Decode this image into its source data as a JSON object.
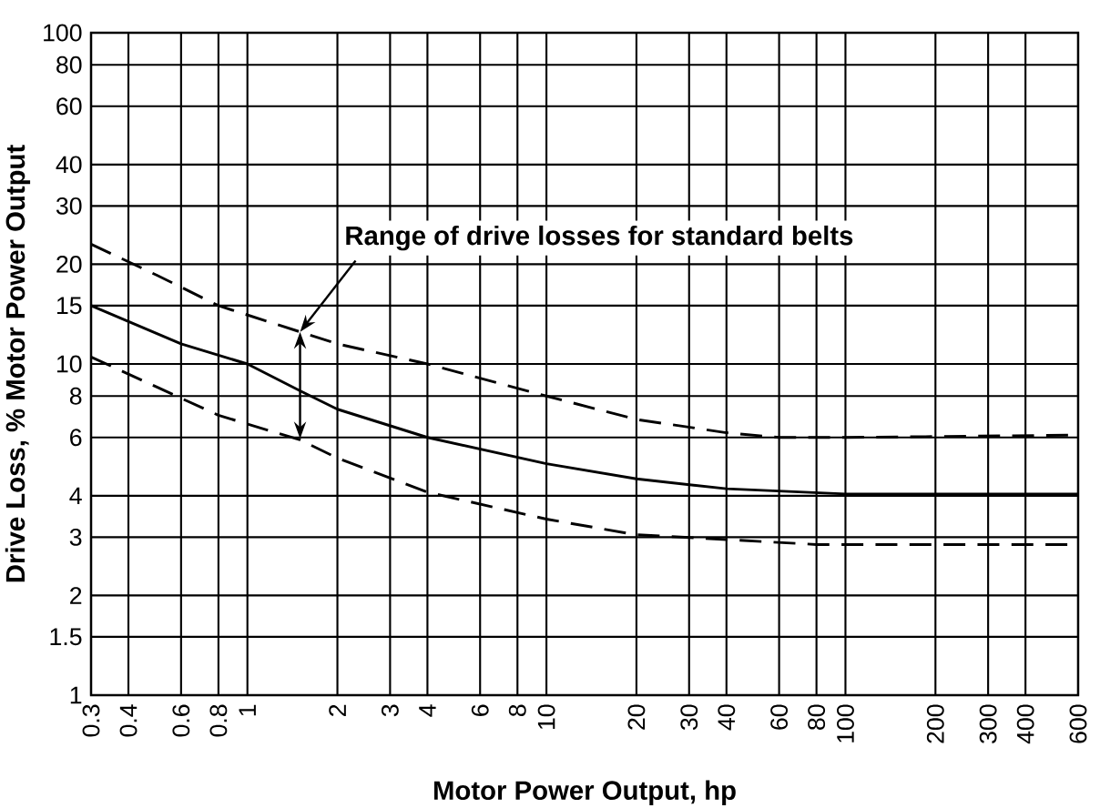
{
  "chart_data": {
    "type": "line",
    "xlabel": "Motor Power Output, hp",
    "ylabel": "Drive Loss, % Motor Power Output",
    "annotations": [
      {
        "text": "Range of drive losses for standard belts",
        "x": 1.5,
        "y": 12.5
      }
    ],
    "log": "xy",
    "grid": true,
    "marker": "none",
    "xlim": [
      0.3,
      600
    ],
    "ylim": [
      1,
      100
    ],
    "xticks": [
      0.3,
      0.4,
      0.6,
      0.8,
      1,
      2,
      3,
      4,
      6,
      8,
      10,
      20,
      30,
      40,
      60,
      80,
      100,
      200,
      300,
      400,
      600
    ],
    "yticks": [
      1,
      1.5,
      2,
      3,
      4,
      6,
      8,
      10,
      15,
      20,
      30,
      40,
      60,
      80,
      100
    ],
    "series": [
      {
        "color": "#000000",
        "line_style": "dashed",
        "x": [
          0.3,
          0.5,
          0.8,
          1.5,
          2,
          4,
          10,
          20,
          40,
          60,
          100,
          600
        ],
        "values": [
          23,
          18.5,
          15,
          12.5,
          11.5,
          10,
          8,
          6.8,
          6.2,
          6,
          6,
          6.1
        ]
      },
      {
        "color": "#000000",
        "line_style": "solid",
        "x": [
          0.3,
          0.6,
          1,
          1.5,
          2,
          4,
          10,
          20,
          40,
          100,
          600
        ],
        "values": [
          15,
          11.5,
          10,
          8.3,
          7.3,
          6,
          5,
          4.5,
          4.2,
          4.05,
          4.05
        ]
      },
      {
        "color": "#000000",
        "line_style": "dashed",
        "x": [
          0.3,
          0.5,
          0.8,
          1.5,
          2,
          4,
          10,
          20,
          40,
          80,
          600
        ],
        "values": [
          10.5,
          8.5,
          7,
          5.9,
          5.2,
          4.1,
          3.4,
          3.05,
          2.95,
          2.85,
          2.85
        ]
      }
    ]
  }
}
